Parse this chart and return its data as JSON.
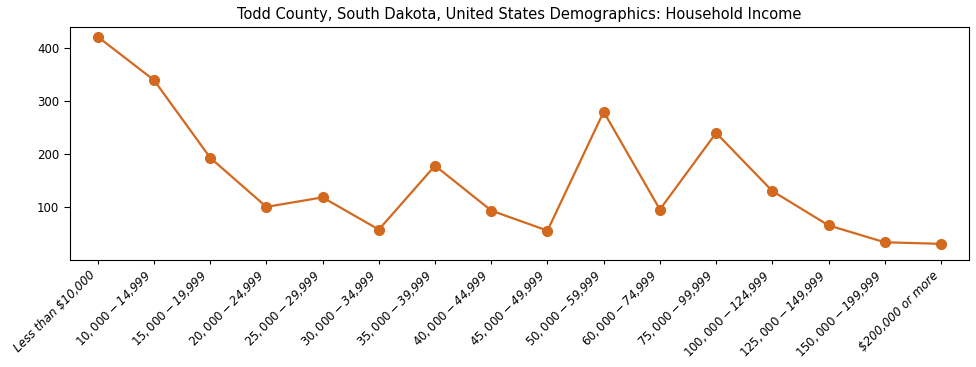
{
  "title": "Todd County, South Dakota, United States Demographics: Household Income",
  "categories": [
    "Less than $10,000",
    "$10,000 - $14,999",
    "$15,000 - $19,999",
    "$20,000 - $24,999",
    "$25,000 - $29,999",
    "$30,000 - $34,999",
    "$35,000 - $39,999",
    "$40,000 - $44,999",
    "$45,000 - $49,999",
    "$50,000 - $59,999",
    "$60,000 - $74,999",
    "$75,000 - $99,999",
    "$100,000 - $124,999",
    "$125,000 - $149,999",
    "$150,000 - $199,999",
    "$200,000 or more"
  ],
  "values": [
    422,
    340,
    193,
    100,
    118,
    57,
    178,
    93,
    55,
    280,
    95,
    240,
    130,
    65,
    33,
    30
  ],
  "line_color": "#d2691e",
  "marker_color": "#d2691e",
  "marker_size": 7,
  "line_width": 1.6,
  "ylim": [
    0,
    440
  ],
  "yticks": [
    100,
    200,
    300,
    400
  ],
  "background_color": "#ffffff",
  "title_fontsize": 10.5,
  "tick_fontsize": 8.5
}
